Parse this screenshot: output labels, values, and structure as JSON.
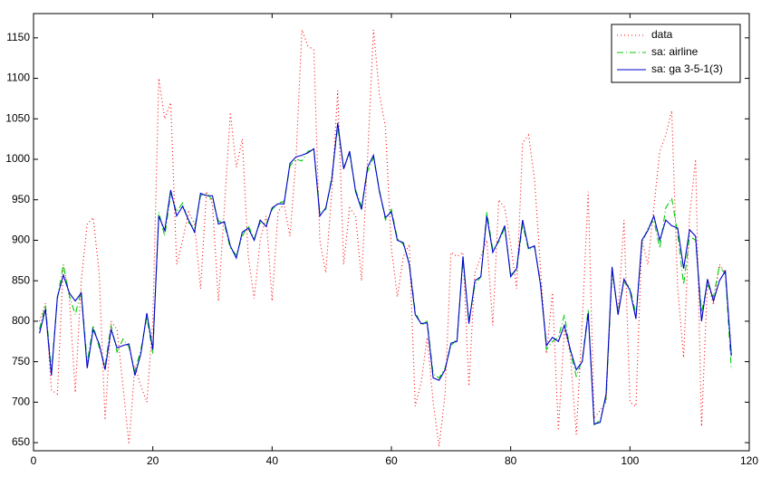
{
  "chart_data": {
    "type": "line",
    "x": [
      1,
      2,
      3,
      4,
      5,
      6,
      7,
      8,
      9,
      10,
      11,
      12,
      13,
      14,
      15,
      16,
      17,
      18,
      19,
      20,
      21,
      22,
      23,
      24,
      25,
      26,
      27,
      28,
      29,
      30,
      31,
      32,
      33,
      34,
      35,
      36,
      37,
      38,
      39,
      40,
      41,
      42,
      43,
      44,
      45,
      46,
      47,
      48,
      49,
      50,
      51,
      52,
      53,
      54,
      55,
      56,
      57,
      58,
      59,
      60,
      61,
      62,
      63,
      64,
      65,
      66,
      67,
      68,
      69,
      70,
      71,
      72,
      73,
      74,
      75,
      76,
      77,
      78,
      79,
      80,
      81,
      82,
      83,
      84,
      85,
      86,
      87,
      88,
      89,
      90,
      91,
      92,
      93,
      94,
      95,
      96,
      97,
      98,
      99,
      100,
      101,
      102,
      103,
      104,
      105,
      106,
      107,
      108,
      109,
      110,
      111,
      112,
      113,
      114,
      115,
      116,
      117
    ],
    "series": [
      {
        "name": "data",
        "color": "#ff0000",
        "style": "dotted",
        "values": [
          800,
          822,
          715,
          710,
          870,
          830,
          712,
          850,
          920,
          928,
          860,
          678,
          800,
          790,
          720,
          648,
          745,
          720,
          700,
          800,
          1100,
          1050,
          1070,
          870,
          900,
          935,
          920,
          840,
          960,
          945,
          825,
          940,
          1058,
          990,
          1025,
          880,
          828,
          900,
          930,
          825,
          935,
          945,
          905,
          1000,
          1160,
          1140,
          1135,
          900,
          860,
          960,
          1085,
          870,
          940,
          930,
          850,
          1000,
          1160,
          1080,
          1040,
          890,
          830,
          880,
          895,
          695,
          725,
          780,
          700,
          645,
          710,
          885,
          880,
          885,
          720,
          860,
          880,
          900,
          795,
          950,
          940,
          895,
          840,
          1020,
          1030,
          975,
          865,
          760,
          835,
          665,
          790,
          760,
          660,
          800,
          960,
          680,
          690,
          700,
          860,
          810,
          925,
          700,
          695,
          900,
          870,
          940,
          1010,
          1030,
          1060,
          840,
          755,
          930,
          1000,
          670,
          850,
          820,
          870,
          860,
          760
        ]
      },
      {
        "name": "sa: airline",
        "color": "#00cc00",
        "style": "dashdot",
        "values": [
          790,
          820,
          738,
          828,
          870,
          832,
          808,
          838,
          748,
          795,
          768,
          745,
          795,
          762,
          778,
          768,
          738,
          765,
          805,
          760,
          935,
          905,
          958,
          935,
          946,
          922,
          915,
          955,
          958,
          950,
          924,
          920,
          890,
          882,
          905,
          918,
          902,
          922,
          920,
          938,
          946,
          948,
          992,
          1000,
          998,
          1010,
          1012,
          935,
          938,
          978,
          1040,
          990,
          1006,
          962,
          942,
          985,
          1002,
          962,
          925,
          938,
          902,
          895,
          872,
          812,
          795,
          800,
          735,
          730,
          742,
          770,
          778,
          875,
          800,
          845,
          855,
          935,
          888,
          898,
          915,
          858,
          862,
          920,
          888,
          892,
          848,
          765,
          775,
          780,
          808,
          762,
          732,
          752,
          815,
          672,
          678,
          705,
          862,
          812,
          848,
          842,
          808,
          895,
          915,
          925,
          890,
          940,
          952,
          908,
          845,
          905,
          900,
          812,
          845,
          830,
          868,
          858,
          740
        ]
      },
      {
        "name": "sa: ga 3-5-1(3)",
        "color": "#0000cc",
        "style": "solid",
        "values": [
          785,
          815,
          733,
          830,
          857,
          835,
          825,
          835,
          742,
          790,
          772,
          740,
          790,
          767,
          770,
          772,
          733,
          760,
          810,
          765,
          930,
          912,
          962,
          930,
          942,
          925,
          910,
          958,
          955,
          955,
          920,
          923,
          893,
          878,
          910,
          915,
          900,
          925,
          917,
          940,
          945,
          945,
          995,
          1003,
          1005,
          1008,
          1013,
          930,
          940,
          975,
          1045,
          988,
          1010,
          960,
          938,
          990,
          1005,
          960,
          928,
          935,
          900,
          897,
          870,
          808,
          797,
          798,
          730,
          727,
          740,
          773,
          775,
          880,
          797,
          850,
          855,
          930,
          885,
          900,
          918,
          855,
          865,
          925,
          890,
          893,
          845,
          770,
          780,
          775,
          795,
          765,
          740,
          750,
          810,
          673,
          675,
          710,
          867,
          808,
          852,
          838,
          803,
          900,
          912,
          930,
          900,
          925,
          918,
          915,
          865,
          913,
          905,
          800,
          852,
          825,
          850,
          862,
          757
        ]
      }
    ],
    "xlim": [
      0,
      120
    ],
    "xticks": [
      0,
      20,
      40,
      60,
      80,
      100,
      120
    ],
    "ylim": [
      640,
      1180
    ],
    "yticks": [
      650,
      700,
      750,
      800,
      850,
      900,
      950,
      1000,
      1050,
      1100,
      1150
    ],
    "legend": "top-right"
  }
}
